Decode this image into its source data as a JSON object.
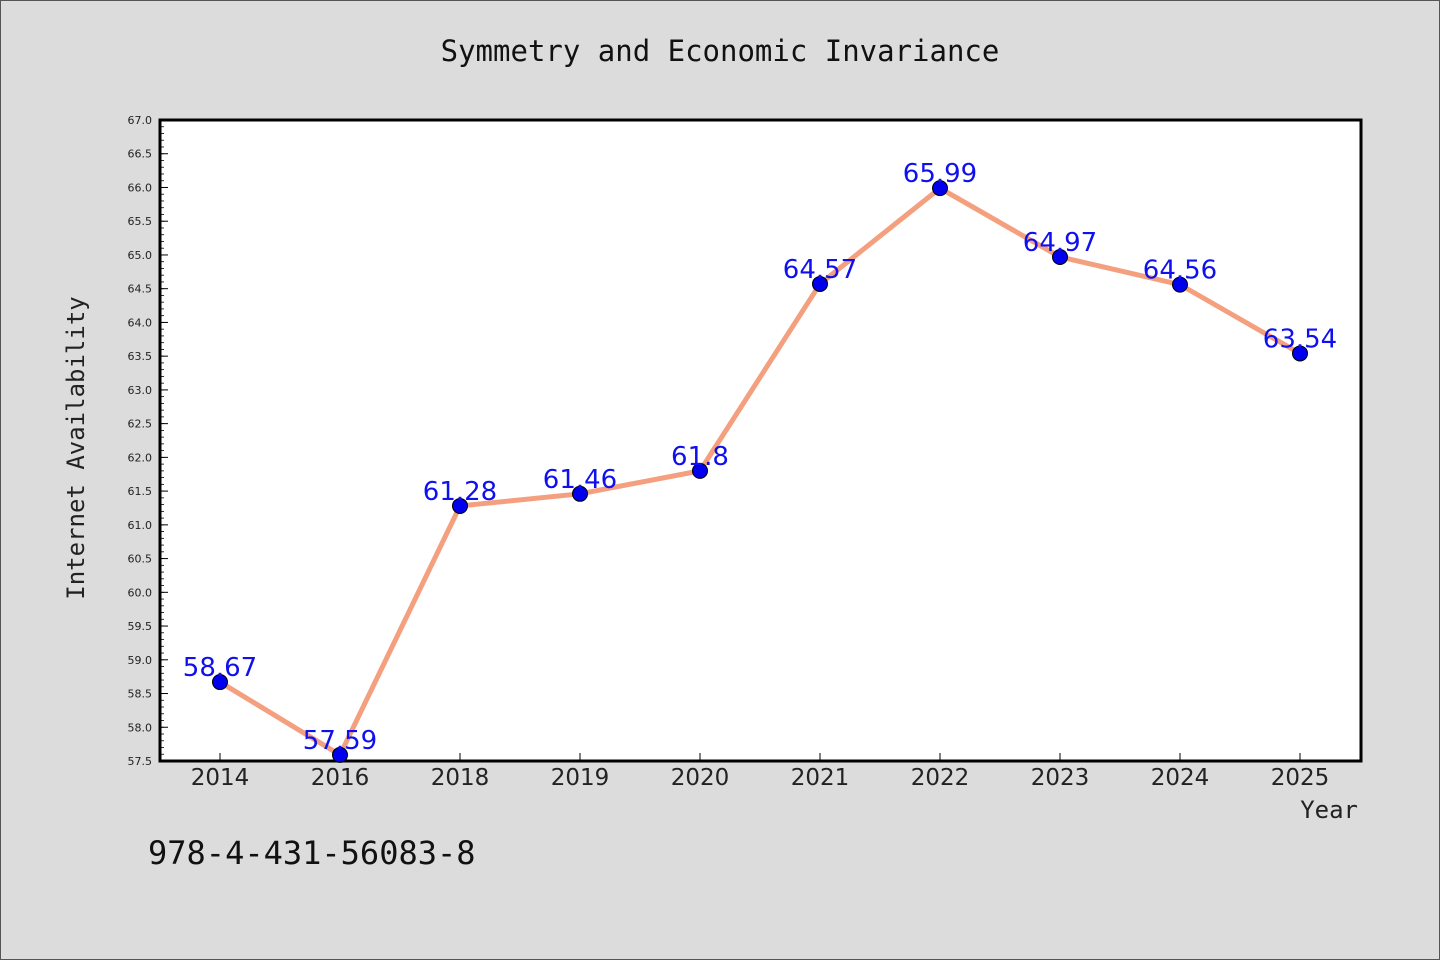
{
  "footer": {
    "isbn": "978-4-431-56083-8"
  },
  "chart_data": {
    "type": "line",
    "title": "Symmetry and Economic Invariance",
    "xlabel": "Year",
    "ylabel": "Internet Availability",
    "categories": [
      "2014",
      "2016",
      "2018",
      "2019",
      "2020",
      "2021",
      "2022",
      "2023",
      "2024",
      "2025"
    ],
    "values": [
      58.67,
      57.59,
      61.28,
      61.46,
      61.8,
      64.57,
      65.99,
      64.97,
      64.56,
      63.54
    ],
    "data_labels": [
      "58.67",
      "57.59",
      "61.28",
      "61.46",
      "61.8",
      "64.57",
      "65.99",
      "64.97",
      "64.56",
      "63.54"
    ],
    "ylim": [
      57.5,
      67.0
    ],
    "yticks": [
      "57.5",
      "58.0",
      "58.5",
      "59.0",
      "59.5",
      "60.0",
      "60.5",
      "61.0",
      "61.5",
      "62.0",
      "62.5",
      "63.0",
      "63.5",
      "64.0",
      "64.5",
      "65.0",
      "65.5",
      "66.0",
      "66.5",
      "67.0"
    ],
    "grid": false,
    "line_color": "#f4a07f",
    "marker_color": "#0000ee",
    "label_color": "#1010ee",
    "background": "#dcdcdc",
    "plot_background": "#ffffff"
  }
}
